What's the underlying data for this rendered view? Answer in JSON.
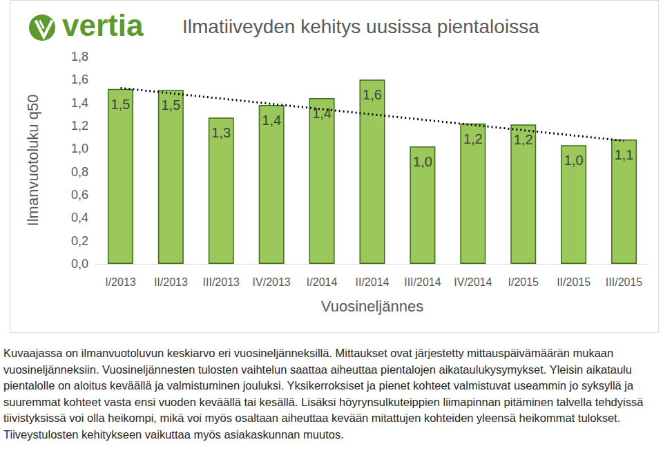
{
  "chart_data": {
    "type": "bar",
    "title": "Ilmatiiveyden kehitys uusissa pientaloissa",
    "logo": "vertia",
    "x_label": "Vuosineljännes",
    "y_label": "Ilmanvuotoluku q50",
    "categories": [
      "I/2013",
      "II/2013",
      "III/2013",
      "IV/2013",
      "I/2014",
      "II/2014",
      "III/2014",
      "IV/2014",
      "I/2015",
      "II/2015",
      "III/2015"
    ],
    "values": [
      1.52,
      1.51,
      1.27,
      1.38,
      1.44,
      1.6,
      1.02,
      1.22,
      1.21,
      1.03,
      1.08
    ],
    "value_labels": [
      "1,5",
      "1,5",
      "1,3",
      "1,4",
      "1,4",
      "1,6",
      "1,0",
      "1,2",
      "1,2",
      "1,0",
      "1,1"
    ],
    "color": "#9bc85a",
    "ylim": [
      0,
      1.8
    ],
    "yticks": [
      {
        "value": 0,
        "label": "0,0"
      },
      {
        "value": 0.2,
        "label": "0,2"
      },
      {
        "value": 0.4,
        "label": "0,4"
      },
      {
        "value": 0.6,
        "label": "0,6"
      },
      {
        "value": 0.8,
        "label": "0,8"
      },
      {
        "value": 1.0,
        "label": "1,0"
      },
      {
        "value": 1.2,
        "label": "1,2"
      },
      {
        "value": 1.4,
        "label": "1,4"
      },
      {
        "value": 1.6,
        "label": "1,6"
      },
      {
        "value": 1.8,
        "label": "1,8"
      }
    ],
    "grid": false,
    "data_labels": true,
    "caption": "Kuvaajassa on ilmanvuotoluvun keskiarvo eri vuosineljänneksillä. Mittaukset ovat järjestetty mittauspäivämäärän mukaan vuosineljänneksiin. Vuosineljännesten tulosten vaihtelun saattaa aiheuttaa pientalojen aikataulukysymykset. Yleisin aikataulu pientalolle on aloitus keväällä ja valmistuminen jouluksi. Yksikerroksiset ja pienet kohteet valmistuvat useammin jo syksyllä ja suuremmat kohteet vasta ensi vuoden keväällä tai kesällä. Lisäksi höyrynsulkuteippien liimapinnan pitäminen talvella tehdyissä tiivistyksissä voi olla heikompi, mikä voi myös osaltaan aiheuttaa kevään mitattujen kohteiden yleensä heikommat tulokset. Tiiveystulosten kehitykseen vaikuttaa myös asiakaskunnan muutos."
  }
}
